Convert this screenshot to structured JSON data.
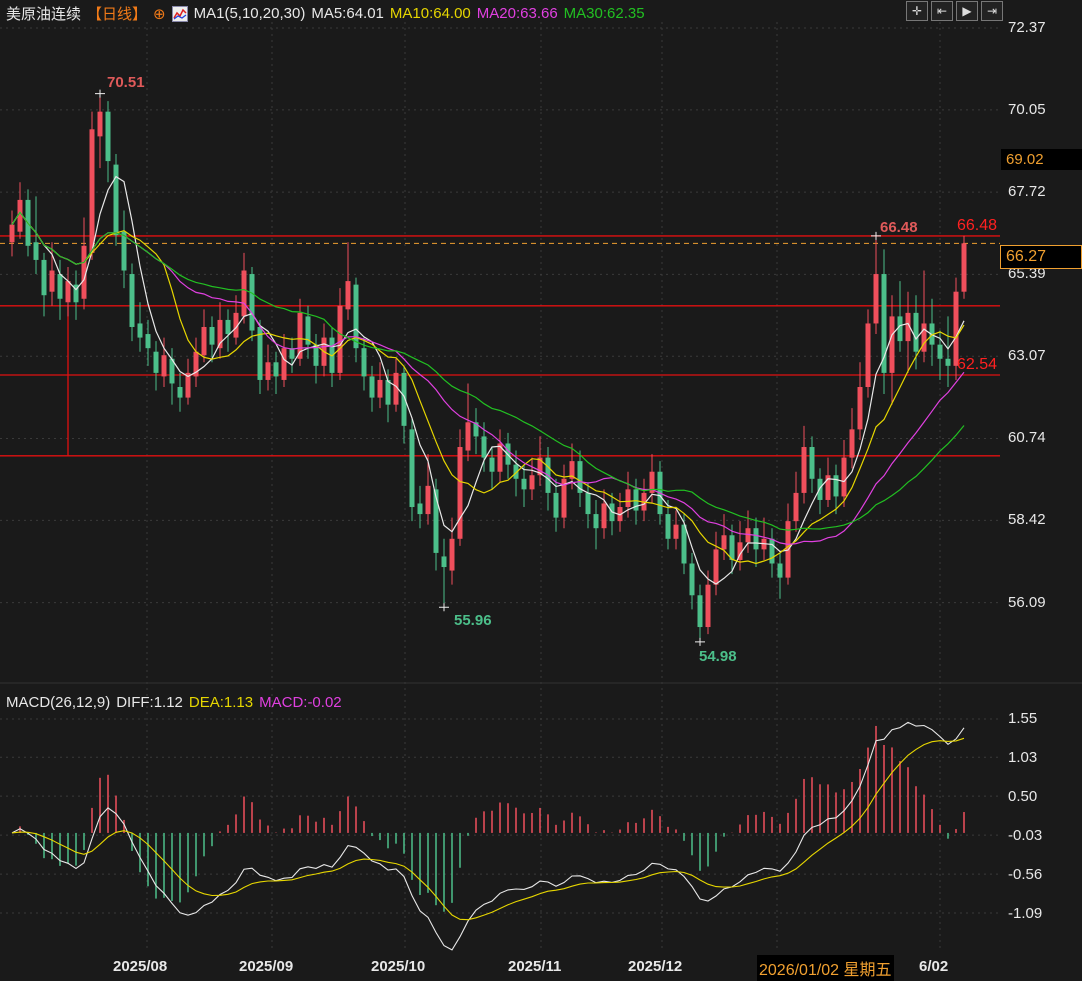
{
  "header": {
    "title": "美原油连续",
    "period": "【日线】",
    "crosshair_icon": "⊕",
    "indicator_icon": "ma-chart-icon",
    "ma_label": "MA1(5,10,20,30)",
    "ma5": "MA5:64.01",
    "ma10": "MA10:64.00",
    "ma20": "MA20:63.66",
    "ma30": "MA30:62.35"
  },
  "toolbar": {
    "buttons": [
      {
        "icon": "crosshair-icon",
        "glyph": "✛"
      },
      {
        "icon": "range-icon",
        "glyph": "⇤"
      },
      {
        "icon": "play-icon",
        "glyph": "▶"
      },
      {
        "icon": "jump-end-icon",
        "glyph": "⇥"
      }
    ]
  },
  "colors": {
    "up": "#ef4f5c",
    "down": "#4cbf8a",
    "ma5": "#e8e8e8",
    "ma10": "#e6d600",
    "ma20": "#e040e0",
    "ma30": "#22c022",
    "level_line": "#e01010",
    "current_price": "#f0a030"
  },
  "price_axis": {
    "ticks": [
      "72.37",
      "70.05",
      "67.72",
      "65.39",
      "63.07",
      "60.74",
      "58.42",
      "56.09"
    ],
    "current_price": "66.27",
    "marker_price": "69.02"
  },
  "annotations": {
    "high1": "70.51",
    "low1": "55.96",
    "low2": "54.98",
    "high2": "66.48",
    "level_high": "66.48",
    "level_low": "62.54"
  },
  "macd": {
    "label": "MACD(26,12,9)",
    "diff": "DIFF:1.12",
    "dea": "DEA:1.13",
    "macd": "MACD:-0.02",
    "ticks": [
      "1.55",
      "1.03",
      "0.50",
      "-0.03",
      "-0.56",
      "-1.09"
    ]
  },
  "date_axis": {
    "months": [
      "2025/08",
      "2025/09",
      "2025/10",
      "2025/11",
      "2025/12"
    ],
    "crosshair_date": "2026/01/02 星期五",
    "last_month": "6/02"
  },
  "chart_data": {
    "type": "candlestick",
    "title": "美原油连续",
    "ylim": [
      54.5,
      72.5
    ],
    "levels": [
      66.48,
      64.5,
      62.54,
      60.25
    ],
    "candles_ohlc": [
      [
        66.3,
        67.2,
        65.9,
        66.8
      ],
      [
        66.6,
        68.0,
        66.4,
        67.5
      ],
      [
        67.5,
        67.8,
        65.9,
        66.2
      ],
      [
        66.3,
        67.6,
        65.4,
        65.8
      ],
      [
        65.8,
        66.0,
        64.2,
        64.8
      ],
      [
        64.9,
        66.3,
        64.5,
        65.5
      ],
      [
        65.4,
        65.8,
        64.1,
        64.7
      ],
      [
        64.6,
        65.6,
        64.2,
        65.2
      ],
      [
        65.1,
        65.5,
        64.1,
        64.6
      ],
      [
        64.7,
        67.0,
        64.4,
        66.2
      ],
      [
        66.0,
        70.0,
        65.8,
        69.5
      ],
      [
        69.3,
        70.51,
        68.4,
        70.0
      ],
      [
        70.0,
        70.3,
        68.0,
        68.6
      ],
      [
        68.5,
        68.8,
        66.2,
        66.5
      ],
      [
        66.6,
        67.2,
        65.0,
        65.5
      ],
      [
        65.4,
        65.7,
        63.5,
        63.9
      ],
      [
        64.0,
        64.6,
        63.2,
        63.6
      ],
      [
        63.7,
        64.1,
        62.8,
        63.3
      ],
      [
        63.2,
        63.5,
        62.1,
        62.6
      ],
      [
        62.5,
        63.6,
        62.2,
        63.1
      ],
      [
        63.0,
        63.3,
        61.7,
        62.3
      ],
      [
        62.2,
        62.6,
        61.5,
        61.9
      ],
      [
        61.9,
        63.0,
        61.7,
        62.6
      ],
      [
        62.5,
        63.6,
        62.2,
        63.2
      ],
      [
        63.1,
        64.4,
        62.9,
        63.9
      ],
      [
        63.9,
        64.2,
        62.9,
        63.4
      ],
      [
        63.3,
        64.6,
        63.0,
        64.1
      ],
      [
        64.1,
        64.4,
        63.2,
        63.7
      ],
      [
        63.6,
        64.8,
        63.4,
        64.3
      ],
      [
        64.2,
        66.0,
        64.0,
        65.5
      ],
      [
        65.4,
        65.6,
        63.5,
        63.8
      ],
      [
        63.9,
        64.1,
        62.0,
        62.4
      ],
      [
        62.4,
        63.4,
        62.1,
        62.9
      ],
      [
        62.9,
        63.2,
        62.0,
        62.5
      ],
      [
        62.4,
        63.7,
        62.2,
        63.3
      ],
      [
        63.3,
        63.6,
        62.6,
        63.0
      ],
      [
        63.0,
        64.7,
        62.8,
        64.3
      ],
      [
        64.2,
        64.5,
        63.0,
        63.4
      ],
      [
        63.4,
        63.7,
        62.3,
        62.8
      ],
      [
        62.8,
        64.0,
        62.5,
        63.6
      ],
      [
        63.6,
        63.9,
        62.2,
        62.6
      ],
      [
        62.6,
        65.0,
        62.4,
        64.5
      ],
      [
        64.4,
        66.3,
        64.1,
        65.2
      ],
      [
        65.1,
        65.3,
        62.9,
        63.3
      ],
      [
        63.3,
        63.6,
        62.1,
        62.5
      ],
      [
        62.5,
        62.8,
        61.5,
        61.9
      ],
      [
        61.9,
        62.9,
        61.6,
        62.4
      ],
      [
        62.4,
        62.7,
        61.2,
        61.7
      ],
      [
        61.7,
        63.0,
        61.5,
        62.6
      ],
      [
        62.6,
        62.8,
        60.6,
        61.1
      ],
      [
        61.0,
        61.3,
        58.4,
        58.8
      ],
      [
        58.9,
        59.4,
        58.2,
        58.6
      ],
      [
        58.6,
        60.3,
        58.3,
        59.4
      ],
      [
        59.3,
        59.6,
        57.0,
        57.5
      ],
      [
        57.4,
        57.9,
        55.96,
        57.1
      ],
      [
        57.0,
        58.5,
        56.6,
        57.9
      ],
      [
        57.9,
        61.0,
        57.7,
        60.5
      ],
      [
        60.4,
        62.3,
        60.1,
        61.2
      ],
      [
        61.2,
        61.6,
        60.3,
        60.8
      ],
      [
        60.8,
        61.2,
        59.8,
        60.2
      ],
      [
        60.2,
        60.5,
        59.3,
        59.8
      ],
      [
        59.8,
        61.0,
        59.5,
        60.6
      ],
      [
        60.6,
        60.9,
        59.6,
        60.0
      ],
      [
        60.0,
        60.4,
        59.1,
        59.6
      ],
      [
        59.6,
        60.0,
        58.8,
        59.3
      ],
      [
        59.3,
        60.2,
        59.0,
        59.7
      ],
      [
        59.7,
        60.8,
        59.4,
        60.2
      ],
      [
        60.2,
        60.5,
        58.7,
        59.2
      ],
      [
        59.2,
        59.6,
        58.1,
        58.5
      ],
      [
        58.5,
        60.0,
        58.2,
        59.6
      ],
      [
        59.6,
        60.6,
        59.3,
        60.1
      ],
      [
        60.1,
        60.4,
        58.8,
        59.2
      ],
      [
        59.2,
        59.5,
        58.2,
        58.6
      ],
      [
        58.6,
        59.0,
        57.6,
        58.2
      ],
      [
        58.2,
        59.3,
        57.9,
        58.9
      ],
      [
        58.9,
        59.2,
        58.0,
        58.4
      ],
      [
        58.4,
        59.2,
        58.1,
        58.8
      ],
      [
        58.8,
        59.8,
        58.5,
        59.3
      ],
      [
        59.3,
        59.6,
        58.3,
        58.7
      ],
      [
        58.7,
        59.6,
        58.4,
        59.2
      ],
      [
        59.2,
        60.3,
        58.9,
        59.8
      ],
      [
        59.8,
        60.1,
        58.3,
        58.6
      ],
      [
        58.6,
        59.0,
        57.6,
        57.9
      ],
      [
        57.9,
        58.7,
        57.6,
        58.3
      ],
      [
        58.3,
        58.6,
        56.9,
        57.2
      ],
      [
        57.2,
        57.5,
        55.9,
        56.3
      ],
      [
        56.3,
        56.6,
        54.98,
        55.4
      ],
      [
        55.4,
        57.0,
        55.2,
        56.6
      ],
      [
        56.6,
        58.1,
        56.3,
        57.6
      ],
      [
        57.6,
        58.6,
        57.3,
        58.0
      ],
      [
        58.0,
        58.3,
        56.9,
        57.3
      ],
      [
        57.3,
        58.4,
        57.0,
        57.8
      ],
      [
        57.8,
        58.7,
        57.5,
        58.2
      ],
      [
        58.2,
        58.5,
        57.1,
        57.6
      ],
      [
        57.6,
        58.5,
        57.3,
        57.9
      ],
      [
        57.9,
        58.2,
        56.8,
        57.2
      ],
      [
        57.2,
        57.5,
        56.2,
        56.8
      ],
      [
        56.8,
        58.9,
        56.6,
        58.4
      ],
      [
        58.4,
        59.8,
        58.1,
        59.2
      ],
      [
        59.2,
        61.1,
        58.9,
        60.5
      ],
      [
        60.5,
        60.8,
        59.2,
        59.6
      ],
      [
        59.6,
        59.9,
        58.6,
        59.0
      ],
      [
        59.0,
        60.2,
        58.8,
        59.7
      ],
      [
        59.7,
        60.0,
        58.6,
        59.1
      ],
      [
        59.1,
        60.7,
        58.8,
        60.2
      ],
      [
        60.2,
        61.6,
        59.9,
        61.0
      ],
      [
        61.0,
        62.9,
        60.7,
        62.2
      ],
      [
        62.2,
        64.4,
        61.9,
        64.0
      ],
      [
        64.0,
        66.48,
        63.7,
        65.4
      ],
      [
        65.4,
        66.1,
        62.0,
        62.6
      ],
      [
        62.6,
        64.8,
        61.7,
        64.2
      ],
      [
        64.2,
        65.2,
        63.2,
        63.5
      ],
      [
        63.5,
        64.9,
        62.6,
        64.3
      ],
      [
        64.3,
        64.8,
        62.7,
        63.2
      ],
      [
        63.2,
        65.5,
        62.9,
        64.0
      ],
      [
        64.0,
        64.7,
        62.8,
        63.4
      ],
      [
        63.4,
        63.8,
        62.4,
        63.0
      ],
      [
        63.0,
        64.2,
        62.2,
        62.8
      ],
      [
        62.8,
        65.3,
        62.4,
        64.9
      ],
      [
        64.9,
        66.48,
        64.7,
        66.27
      ]
    ],
    "moving_averages": [
      5,
      10,
      20,
      30
    ],
    "macd_params": [
      26,
      12,
      9
    ],
    "macd_ylim": [
      -1.35,
      1.7
    ]
  }
}
